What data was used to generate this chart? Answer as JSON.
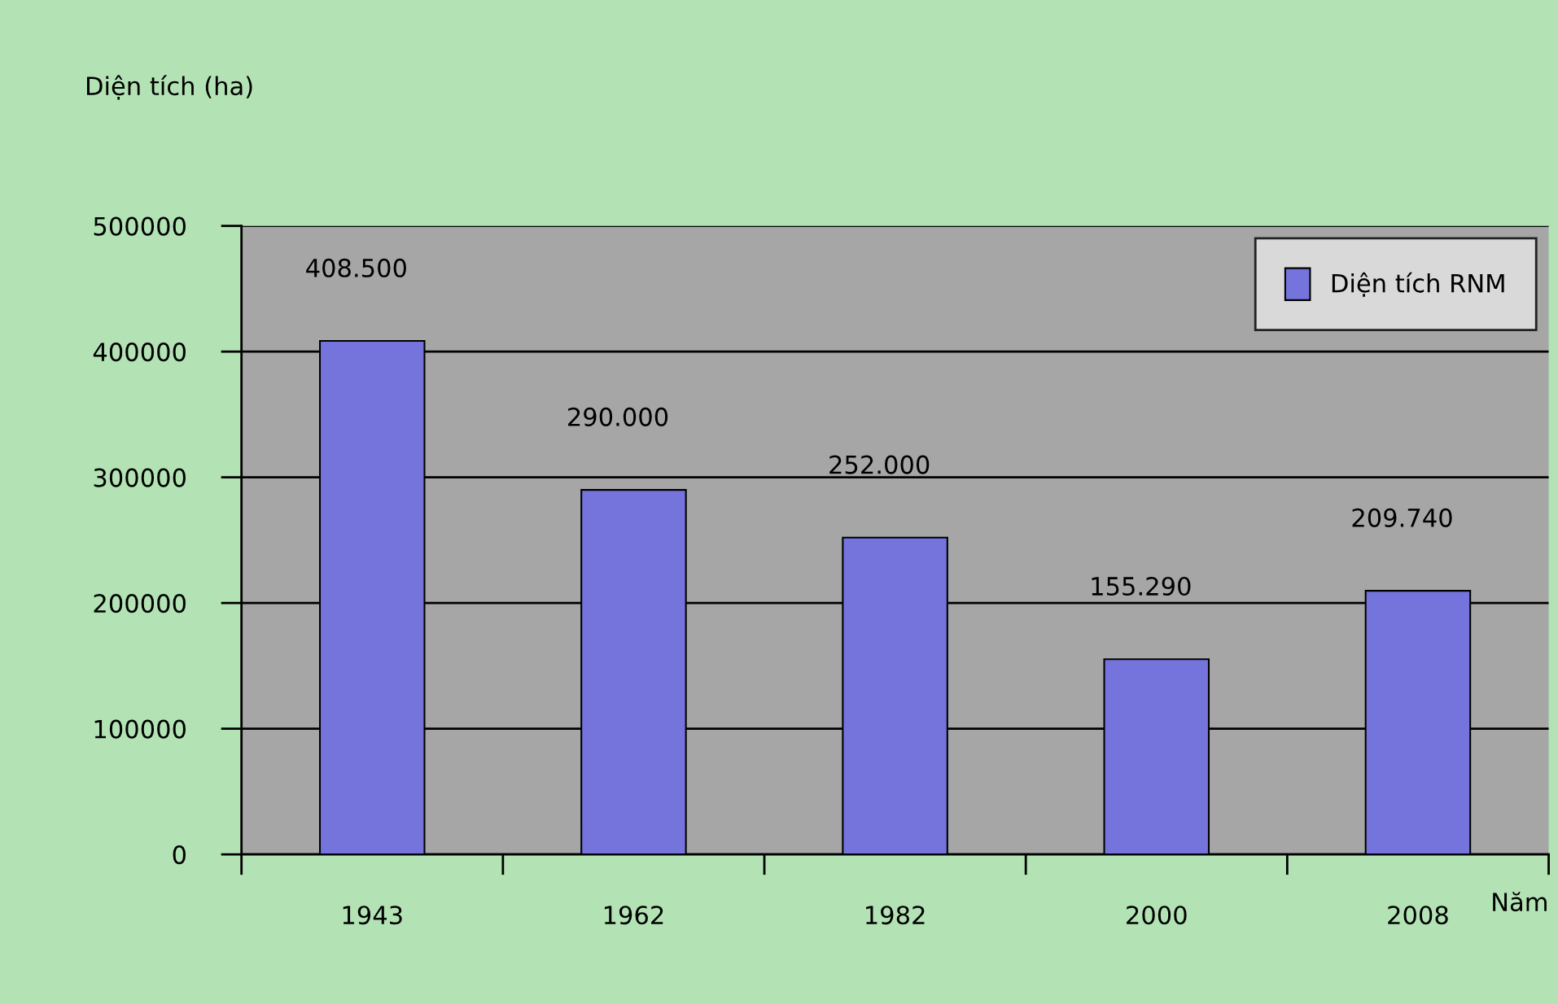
{
  "chart_data": {
    "type": "bar",
    "ylabel": "Diện tích (ha)",
    "xlabel": "Năm",
    "categories": [
      "1943",
      "1962",
      "1982",
      "2000",
      "2008"
    ],
    "series": [
      {
        "name": "Diện tích RNM",
        "color": "#7474dc",
        "values": [
          408500,
          290000,
          252000,
          155290,
          209740
        ],
        "value_labels": [
          "408.500",
          "290.000",
          "252.000",
          "155.290",
          "209.740"
        ]
      }
    ],
    "ylim": [
      0,
      500000
    ],
    "yticks": [
      0,
      100000,
      200000,
      300000,
      400000,
      500000
    ],
    "grid": "y",
    "legend": "top right"
  }
}
